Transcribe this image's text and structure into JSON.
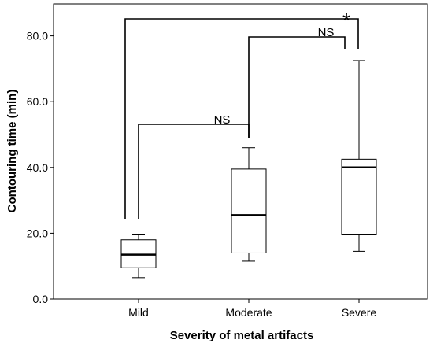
{
  "chart_data": {
    "type": "boxplot",
    "xlabel": "Severity of metal artifacts",
    "ylabel": "Contouring time (min)",
    "ylim": [
      0,
      85
    ],
    "yticks": [
      {
        "value": 0,
        "label": "0.0"
      },
      {
        "value": 20,
        "label": "20.0"
      },
      {
        "value": 40,
        "label": "40.0"
      },
      {
        "value": 60,
        "label": "60.0"
      },
      {
        "value": 80,
        "label": "80.0"
      }
    ],
    "categories": [
      "Mild",
      "Moderate",
      "Severe"
    ],
    "boxes": [
      {
        "category": "Mild",
        "min": 6.5,
        "q1": 9.5,
        "median": 13.5,
        "q3": 18.0,
        "max": 19.5
      },
      {
        "category": "Moderate",
        "min": 11.5,
        "q1": 14.0,
        "median": 25.5,
        "q3": 39.5,
        "max": 46.0
      },
      {
        "category": "Severe",
        "min": 14.5,
        "q1": 19.5,
        "median": 40.0,
        "q3": 42.5,
        "max": 72.5
      }
    ],
    "comparisons": [
      {
        "from": "Mild",
        "to": "Moderate",
        "label": "NS"
      },
      {
        "from": "Moderate",
        "to": "Severe",
        "label": "NS"
      },
      {
        "from": "Mild",
        "to": "Severe",
        "label": "*"
      }
    ],
    "grid": false,
    "legend": "none"
  }
}
